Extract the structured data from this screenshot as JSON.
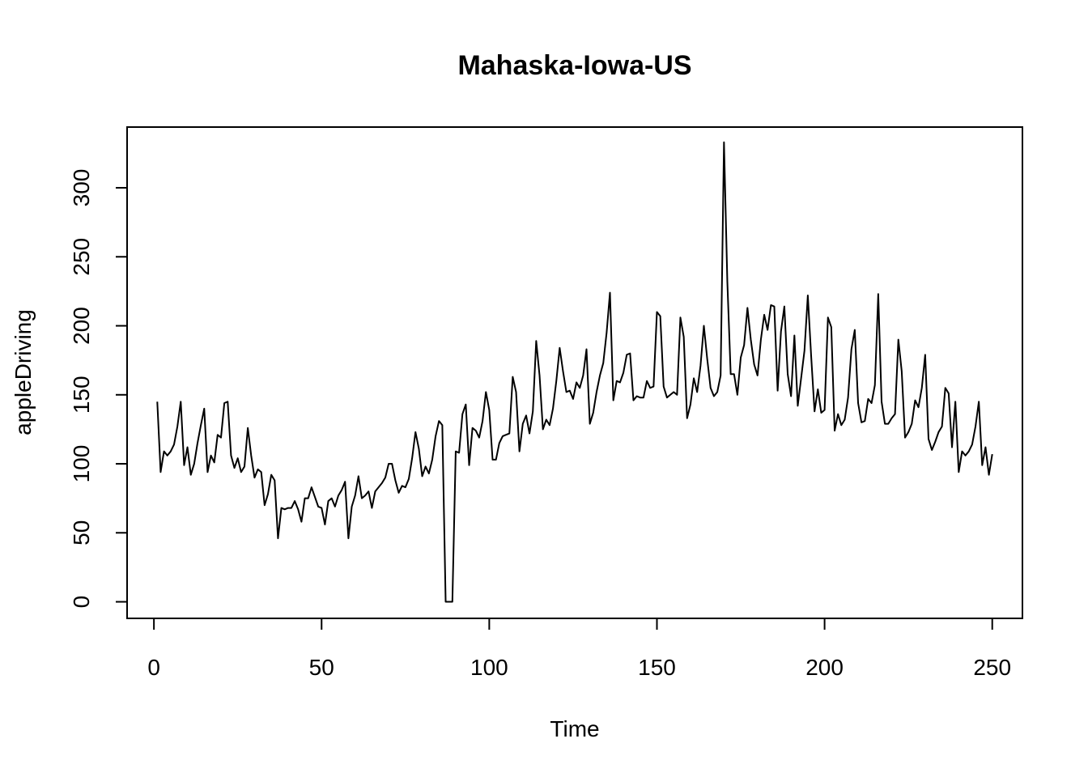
{
  "chart_data": {
    "type": "line",
    "title": "Mahaska-Iowa-US",
    "xlabel": "Time",
    "ylabel": "appleDriving",
    "xlim": [
      -8,
      259
    ],
    "ylim": [
      -12,
      344
    ],
    "x_ticks": [
      0,
      50,
      100,
      150,
      200,
      250
    ],
    "y_ticks": [
      0,
      50,
      100,
      150,
      200,
      250,
      300
    ],
    "x_tick_labels": [
      "0",
      "50",
      "100",
      "150",
      "200",
      "250"
    ],
    "y_tick_labels": [
      "0",
      "50",
      "100",
      "150",
      "200",
      "250",
      "300"
    ],
    "grid": false,
    "series": [
      {
        "x_start": 1,
        "x_step": 1,
        "values": [
          145,
          94,
          109,
          106,
          109,
          114,
          127,
          145,
          99,
          112,
          92,
          100,
          115,
          128,
          140,
          94,
          106,
          101,
          121,
          119,
          144,
          145,
          106,
          97,
          104,
          94,
          98,
          126,
          106,
          90,
          96,
          94,
          70,
          78,
          92,
          88,
          46,
          68,
          67,
          68,
          68,
          73,
          67,
          58,
          75,
          75,
          83,
          76,
          69,
          68,
          56,
          73,
          75,
          69,
          77,
          81,
          87,
          46,
          69,
          77,
          91,
          75,
          77,
          80,
          68,
          80,
          83,
          86,
          90,
          100,
          100,
          88,
          79,
          84,
          83,
          89,
          104,
          123,
          111,
          91,
          98,
          93,
          103,
          120,
          131,
          128,
          0,
          0,
          0,
          109,
          108,
          136,
          143,
          99,
          126,
          124,
          119,
          131,
          152,
          139,
          103,
          103,
          115,
          120,
          121,
          122,
          163,
          152,
          109,
          129,
          135,
          122,
          138,
          189,
          164,
          125,
          132,
          128,
          140,
          160,
          184,
          167,
          152,
          153,
          147,
          159,
          155,
          164,
          183,
          129,
          137,
          152,
          164,
          173,
          195,
          224,
          146,
          160,
          159,
          166,
          179,
          180,
          146,
          149,
          148,
          148,
          160,
          155,
          156,
          210,
          207,
          156,
          148,
          150,
          152,
          150,
          206,
          192,
          133,
          143,
          162,
          152,
          171,
          200,
          176,
          155,
          149,
          152,
          164,
          333,
          232,
          165,
          165,
          150,
          177,
          186,
          213,
          190,
          172,
          164,
          190,
          208,
          197,
          215,
          214,
          153,
          196,
          214,
          165,
          149,
          193,
          142,
          162,
          182,
          222,
          178,
          138,
          154,
          137,
          139,
          206,
          199,
          124,
          136,
          128,
          132,
          148,
          183,
          197,
          144,
          130,
          131,
          147,
          144,
          157,
          223,
          145,
          129,
          129,
          133,
          136,
          190,
          167,
          119,
          123,
          129,
          146,
          141,
          155,
          179,
          118,
          110,
          116,
          123,
          127,
          155,
          151,
          112,
          145,
          94,
          109,
          106,
          109,
          114,
          127,
          145,
          99,
          112,
          92,
          107
        ]
      }
    ]
  }
}
